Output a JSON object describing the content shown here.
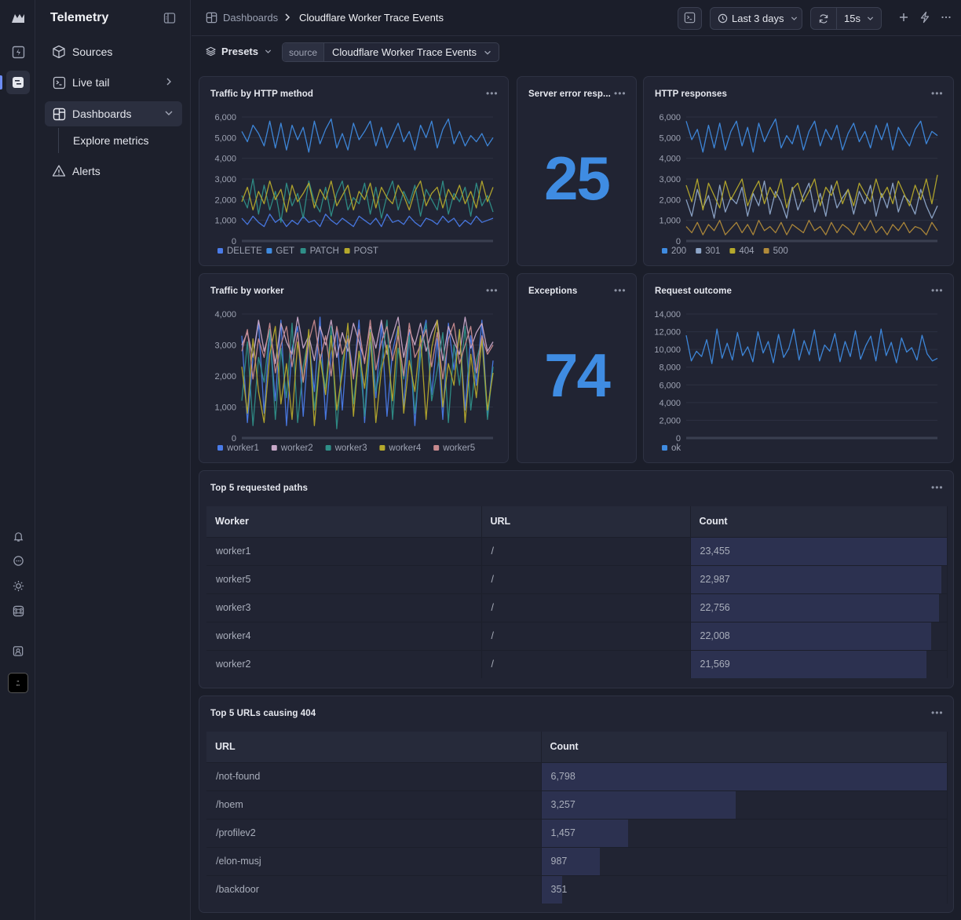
{
  "sidebar": {
    "title": "Telemetry",
    "items": [
      {
        "label": "Sources"
      },
      {
        "label": "Live tail"
      },
      {
        "label": "Dashboards"
      },
      {
        "label": "Alerts"
      }
    ],
    "subitems": [
      {
        "label": "Explore metrics"
      }
    ]
  },
  "topbar": {
    "breadcrumb": [
      "Dashboards",
      "Cloudflare Worker Trace Events"
    ],
    "time_range": "Last 3 days",
    "refresh_interval": "15s"
  },
  "filters": {
    "presets_label": "Presets",
    "source_tag": "source",
    "source_value": "Cloudflare Worker Trace Events"
  },
  "panels": {
    "stat_server_errors": {
      "title": "Server error resp...",
      "value": "25"
    },
    "stat_exceptions": {
      "title": "Exceptions",
      "value": "74"
    },
    "table_paths": {
      "title": "Top 5 requested paths",
      "columns": [
        "Worker",
        "URL",
        "Count"
      ],
      "rows": [
        {
          "worker": "worker1",
          "url": "/",
          "count": "23,455",
          "fraction": 1.0
        },
        {
          "worker": "worker5",
          "url": "/",
          "count": "22,987",
          "fraction": 0.98
        },
        {
          "worker": "worker3",
          "url": "/",
          "count": "22,756",
          "fraction": 0.97
        },
        {
          "worker": "worker4",
          "url": "/",
          "count": "22,008",
          "fraction": 0.94
        },
        {
          "worker": "worker2",
          "url": "/",
          "count": "21,569",
          "fraction": 0.92
        }
      ]
    },
    "table_404": {
      "title": "Top 5 URLs causing 404",
      "columns": [
        "URL",
        "Count"
      ],
      "rows": [
        {
          "url": "/not-found",
          "count": "6,798",
          "fraction": 1.0
        },
        {
          "url": "/hoem",
          "count": "3,257",
          "fraction": 0.479
        },
        {
          "url": "/profilev2",
          "count": "1,457",
          "fraction": 0.214
        },
        {
          "url": "/elon-musj",
          "count": "987",
          "fraction": 0.145
        },
        {
          "url": "/backdoor",
          "count": "351",
          "fraction": 0.052
        }
      ]
    }
  },
  "chart_data": [
    {
      "type": "line",
      "title": "Traffic by HTTP method",
      "ylim": [
        0,
        6000
      ],
      "yticks": [
        "6,000",
        "5,000",
        "4,000",
        "3,000",
        "2,000",
        "1,000",
        "0"
      ],
      "legend_placement": "bottom-left",
      "series": [
        {
          "name": "DELETE",
          "color": "#4a7be8",
          "values": [
            1100,
            800,
            1200,
            900,
            700,
            1300,
            900,
            1100,
            700,
            1000,
            800,
            1200,
            900,
            1000,
            700,
            1300,
            1000,
            800,
            1100,
            900,
            700,
            1200,
            1000,
            800,
            1100,
            700,
            1300,
            900,
            1000,
            800,
            1200,
            900,
            700,
            1100,
            1000,
            800,
            1200,
            900,
            1100,
            700,
            1000,
            800,
            1200,
            900,
            1000,
            1100
          ]
        },
        {
          "name": "GET",
          "color": "#3f8be0",
          "values": [
            5300,
            4800,
            5600,
            5200,
            4600,
            5800,
            4500,
            5700,
            4400,
            5600,
            4900,
            5500,
            4300,
            5800,
            4700,
            5400,
            5900,
            4500,
            5200,
            4400,
            5700,
            4900,
            5300,
            5800,
            4600,
            5500,
            4500,
            5100,
            5700,
            4800,
            5300,
            4400,
            5600,
            5000,
            5800,
            4500,
            5400,
            5900,
            4700,
            5300,
            4600,
            5100,
            4800,
            5200,
            4600,
            5000
          ]
        },
        {
          "name": "PATCH",
          "color": "#2f8f88",
          "values": [
            2200,
            1600,
            3000,
            1300,
            2700,
            1500,
            2400,
            900,
            2800,
            1700,
            2300,
            1100,
            2900,
            1900,
            1400,
            2600,
            1200,
            2300,
            2900,
            1500,
            2100,
            1800,
            2800,
            1300,
            2600,
            1100,
            2200,
            2900,
            1500,
            2400,
            1800,
            2700,
            1200,
            2500,
            2000,
            1500,
            2900,
            1300,
            2300,
            1900,
            2600,
            1200,
            2800,
            1700,
            2200,
            1400
          ]
        },
        {
          "name": "POST",
          "color": "#b5a92c",
          "values": [
            1900,
            2600,
            1500,
            2400,
            1800,
            2900,
            2000,
            2500,
            1400,
            2700,
            1900,
            2300,
            2800,
            1600,
            2500,
            2000,
            2900,
            1700,
            2200,
            2700,
            1500,
            2400,
            2000,
            2800,
            1600,
            2600,
            2100,
            1800,
            2700,
            2200,
            1500,
            2400,
            2900,
            1700,
            2300,
            2600,
            1600,
            2500,
            2000,
            2700,
            1800,
            2400,
            1600,
            2900,
            1900,
            2600
          ]
        }
      ]
    },
    {
      "type": "line",
      "title": "HTTP responses",
      "ylim": [
        0,
        6000
      ],
      "yticks": [
        "6,000",
        "5,000",
        "4,000",
        "3,000",
        "2,000",
        "1,000",
        "0"
      ],
      "legend_placement": "bottom-left",
      "series": [
        {
          "name": "200",
          "color": "#3f8be0",
          "values": [
            5800,
            4900,
            5400,
            4300,
            5600,
            4500,
            5700,
            4400,
            5300,
            5800,
            4600,
            5500,
            4300,
            5700,
            4800,
            5400,
            5900,
            4500,
            5100,
            4700,
            5600,
            4400,
            5300,
            5800,
            4600,
            5400,
            4900,
            5600,
            4400,
            5200,
            5700,
            4800,
            5300,
            4500,
            5600,
            4900,
            5700,
            4400,
            5500,
            5000,
            4600,
            5400,
            5800,
            4700,
            5300,
            5100
          ]
        },
        {
          "name": "301",
          "color": "#8ea6c9",
          "values": [
            2000,
            1200,
            2500,
            1600,
            2200,
            1100,
            2700,
            1400,
            2100,
            1800,
            2600,
            1200,
            2300,
            1700,
            2900,
            1300,
            2400,
            1900,
            1100,
            2600,
            1500,
            2200,
            2800,
            1400,
            2300,
            1200,
            2700,
            1600,
            2100,
            2500,
            1300,
            2400,
            1800,
            2700,
            1200,
            2300,
            1600,
            2800,
            1400,
            2200,
            1900,
            1300,
            2500,
            1700,
            1100,
            1700
          ]
        },
        {
          "name": "404",
          "color": "#b5a92c",
          "values": [
            2700,
            1900,
            3000,
            1500,
            2800,
            2200,
            1600,
            2900,
            2000,
            2500,
            3000,
            1700,
            2400,
            2900,
            1800,
            2600,
            2100,
            3000,
            1600,
            2500,
            2800,
            1900,
            2400,
            3000,
            1700,
            2600,
            2200,
            2900,
            1800,
            2500,
            1700,
            2800,
            2300,
            1900,
            3000,
            2100,
            2600,
            1800,
            2900,
            2300,
            1700,
            2700,
            2000,
            3000,
            1800,
            3200
          ]
        },
        {
          "name": "500",
          "color": "#b08a3a",
          "values": [
            700,
            400,
            900,
            300,
            800,
            500,
            1000,
            300,
            600,
            900,
            400,
            800,
            300,
            1000,
            500,
            700,
            400,
            900,
            300,
            800,
            600,
            400,
            1000,
            500,
            700,
            300,
            900,
            400,
            800,
            600,
            300,
            900,
            500,
            1000,
            400,
            700,
            300,
            800,
            500,
            900,
            400,
            700,
            600,
            300,
            900,
            500
          ]
        }
      ]
    },
    {
      "type": "line",
      "title": "Traffic by worker",
      "ylim": [
        0,
        4000
      ],
      "yticks": [
        "4,000",
        "3,000",
        "2,000",
        "1,000",
        "0"
      ],
      "legend_placement": "bottom-left",
      "series": [
        {
          "name": "worker1",
          "color": "#4a7be8",
          "values": [
            3300,
            500,
            2600,
            3700,
            800,
            3400,
            1200,
            3800,
            400,
            2900,
            3600,
            700,
            3200,
            1500,
            3900,
            600,
            2700,
            3500,
            900,
            3300,
            2000,
            3800,
            500,
            3100,
            1300,
            3700,
            700,
            2800,
            3600,
            1000,
            3400,
            400,
            3000,
            3800,
            1400,
            3200,
            600,
            3700,
            2200,
            3500,
            900,
            3300,
            1700,
            3800,
            700,
            2500
          ]
        },
        {
          "name": "worker2",
          "color": "#c8a8c8",
          "values": [
            3000,
            3400,
            2600,
            3800,
            2800,
            3500,
            2400,
            3700,
            3100,
            2700,
            3900,
            2900,
            3300,
            2500,
            3600,
            3000,
            3800,
            2600,
            3400,
            2800,
            3700,
            3100,
            2500,
            3600,
            2900,
            3800,
            2700,
            3300,
            3900,
            2600,
            3500,
            3000,
            3700,
            2800,
            3400,
            3800,
            2500,
            3600,
            3100,
            2700,
            3900,
            2900,
            3400,
            3700,
            2800,
            3100
          ]
        },
        {
          "name": "worker3",
          "color": "#2f8f88",
          "values": [
            1200,
            3100,
            400,
            2600,
            1800,
            3500,
            600,
            2900,
            1300,
            3700,
            500,
            2300,
            3300,
            900,
            2700,
            1600,
            3600,
            300,
            2500,
            3200,
            1100,
            2800,
            700,
            3500,
            1500,
            2400,
            3800,
            600,
            2900,
            1900,
            3300,
            800,
            2600,
            3700,
            1200,
            2200,
            3400,
            500,
            3000,
            1700,
            3600,
            900,
            2500,
            3200,
            600,
            2300
          ]
        },
        {
          "name": "worker4",
          "color": "#b5a92c",
          "values": [
            2300,
            800,
            3200,
            1500,
            500,
            2700,
            3600,
            1100,
            2400,
            600,
            3100,
            1800,
            3500,
            400,
            2600,
            1400,
            3300,
            900,
            2100,
            3700,
            700,
            2800,
            1600,
            3400,
            500,
            2200,
            3000,
            1200,
            3600,
            800,
            2500,
            1500,
            3300,
            600,
            2900,
            3800,
            1000,
            2400,
            1700,
            3500,
            500,
            2700,
            1300,
            3200,
            900,
            2100
          ]
        },
        {
          "name": "worker5",
          "color": "#c78a8e",
          "values": [
            2800,
            3500,
            1900,
            3200,
            2600,
            3700,
            2100,
            3000,
            3600,
            2300,
            3400,
            1800,
            3100,
            3800,
            2500,
            3300,
            2000,
            3600,
            2700,
            3200,
            1900,
            3500,
            2400,
            3800,
            2200,
            3100,
            3600,
            2500,
            3300,
            2000,
            3700,
            2600,
            3000,
            3500,
            2300,
            3400,
            1900,
            3200,
            3700,
            2400,
            3000,
            3600,
            2100,
            3300,
            2700,
            3000
          ]
        }
      ]
    },
    {
      "type": "line",
      "title": "Request outcome",
      "ylim": [
        0,
        14000
      ],
      "yticks": [
        "14,000",
        "12,000",
        "10,000",
        "8,000",
        "6,000",
        "4,000",
        "2,000",
        "0"
      ],
      "legend_placement": "bottom-left",
      "series": [
        {
          "name": "ok",
          "color": "#3f8be0",
          "values": [
            11600,
            8700,
            9800,
            9200,
            11100,
            8400,
            12300,
            9000,
            10700,
            8800,
            11900,
            9300,
            10300,
            8600,
            12000,
            9600,
            10900,
            8500,
            11700,
            9100,
            10100,
            12300,
            8800,
            11000,
            9400,
            12200,
            8700,
            10500,
            9800,
            11800,
            8600,
            10900,
            9200,
            12100,
            8900,
            10400,
            11500,
            8700,
            12300,
            9300,
            10800,
            8500,
            11300,
            9700,
            10200,
            8800,
            11600,
            9500,
            8700,
            9000
          ]
        }
      ]
    }
  ]
}
